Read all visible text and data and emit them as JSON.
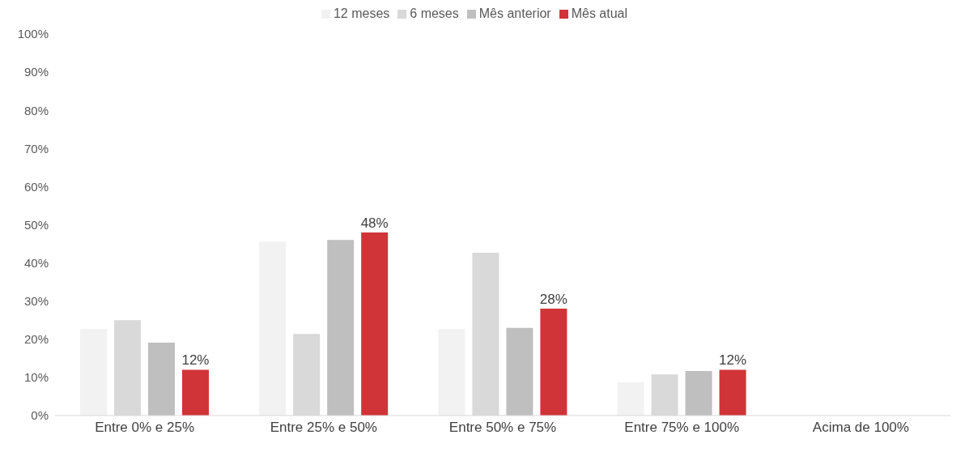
{
  "chart_data": {
    "type": "bar",
    "categories": [
      "Entre 0% e 25%",
      "Entre 25% e 50%",
      "Entre 50% e 75%",
      "Entre 75% e 100%",
      "Acima de 100%"
    ],
    "series": [
      {
        "name": "12 meses",
        "color": "#f2f2f2",
        "values": [
          22.7,
          45.6,
          22.7,
          8.7,
          null
        ]
      },
      {
        "name": "6 meses",
        "color": "#d9d9d9",
        "values": [
          25,
          21.4,
          42.7,
          10.8,
          null
        ]
      },
      {
        "name": "Mês anterior",
        "color": "#bfbfbf",
        "values": [
          19.1,
          46,
          23,
          11.7,
          null
        ]
      },
      {
        "name": "Mês atual",
        "color": "#d13438",
        "values": [
          12,
          48,
          28,
          12,
          null
        ],
        "value_labels": [
          "12%",
          "48%",
          "28%",
          "12%",
          null
        ]
      }
    ],
    "ylim": [
      0,
      100
    ],
    "yticks": [
      {
        "value": 0,
        "label": "0%"
      },
      {
        "value": 10,
        "label": "10%"
      },
      {
        "value": 20,
        "label": "20%"
      },
      {
        "value": 30,
        "label": "30%"
      },
      {
        "value": 40,
        "label": "40%"
      },
      {
        "value": 50,
        "label": "50%"
      },
      {
        "value": 60,
        "label": "60%"
      },
      {
        "value": 70,
        "label": "70%"
      },
      {
        "value": 80,
        "label": "80%"
      },
      {
        "value": 90,
        "label": "90%"
      },
      {
        "value": 100,
        "label": "100%"
      }
    ],
    "grid": false,
    "legend": "top"
  }
}
